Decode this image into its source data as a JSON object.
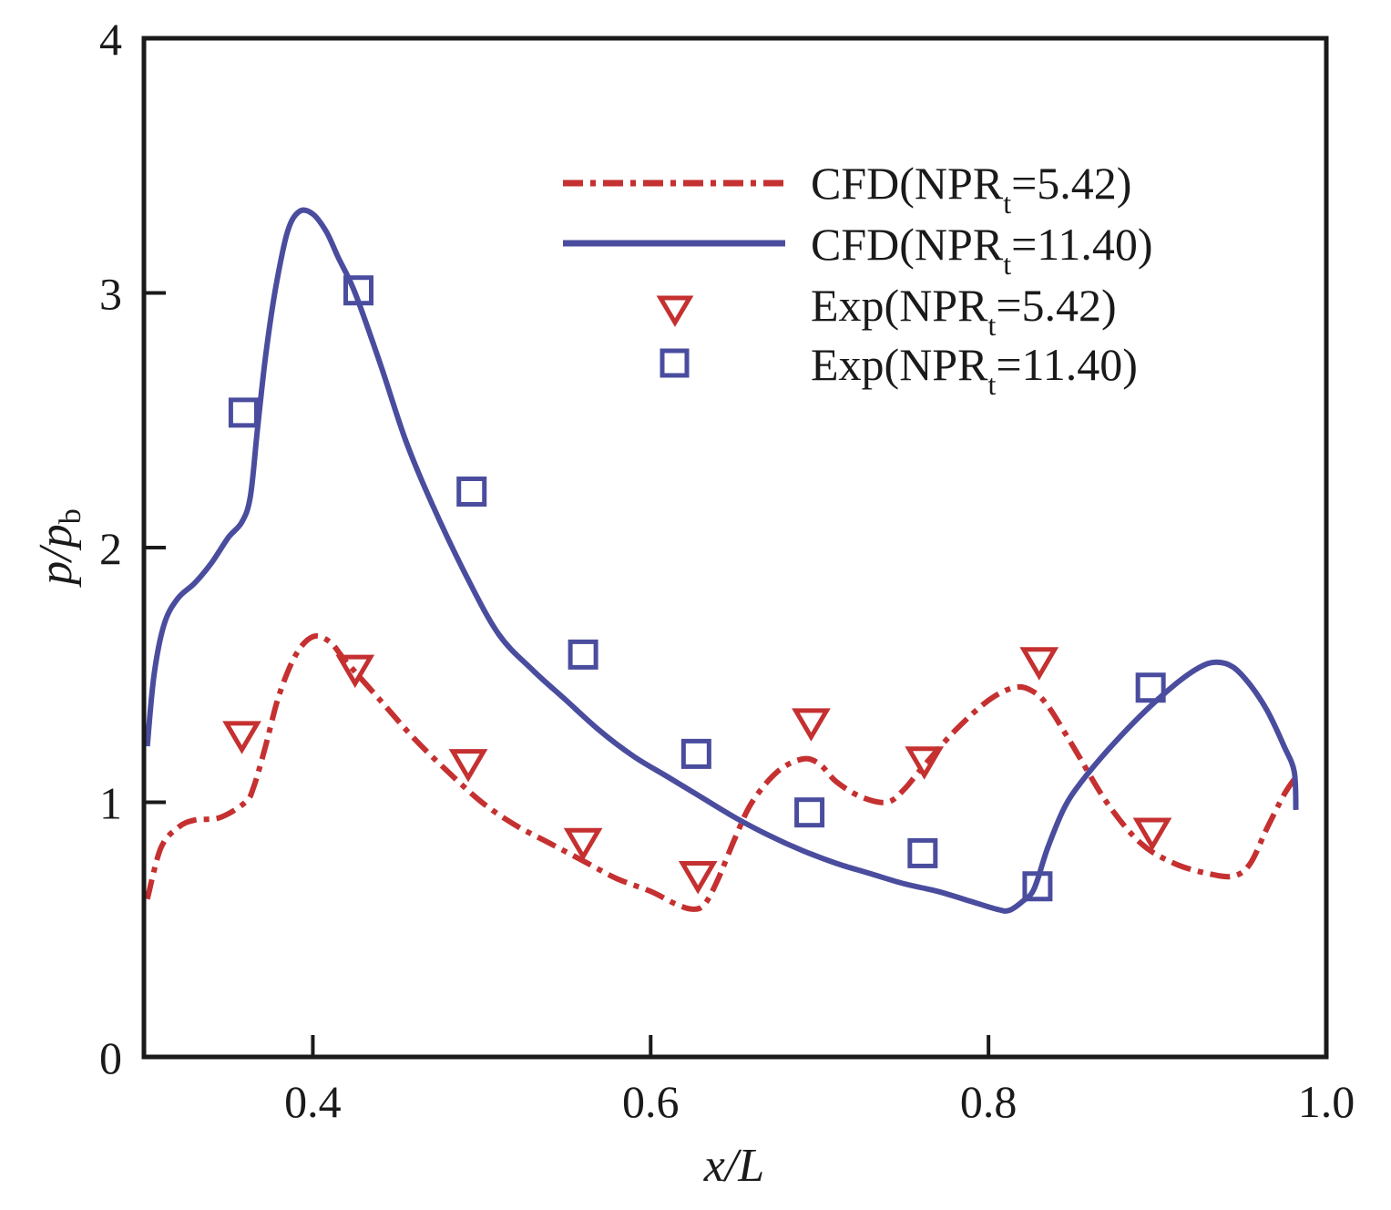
{
  "chart_data": {
    "type": "line",
    "title": "",
    "xlabel": "x/L",
    "ylabel_main": "p/p",
    "ylabel_sub": "b",
    "xlim": [
      0.3,
      1.0
    ],
    "ylim": [
      0,
      4
    ],
    "xticks": [
      0.4,
      0.6,
      0.8,
      1.0
    ],
    "xtick_labels": [
      "0.4",
      "0.6",
      "0.8",
      "1.0"
    ],
    "yticks": [
      0,
      1,
      2,
      3,
      4
    ],
    "ytick_labels": [
      "0",
      "1",
      "2",
      "3",
      "4"
    ],
    "grid": false,
    "legend_position": "top-right",
    "series": [
      {
        "name": "CFD(NPRt=5.42)",
        "label_main": "CFD(NPR",
        "label_sub": "t",
        "label_tail": "=5.42)",
        "kind": "line",
        "style": "dash-dot",
        "color": "#c53030",
        "x": [
          0.302,
          0.31,
          0.32,
          0.33,
          0.345,
          0.36,
          0.365,
          0.372,
          0.38,
          0.39,
          0.4,
          0.41,
          0.42,
          0.44,
          0.46,
          0.48,
          0.5,
          0.52,
          0.54,
          0.56,
          0.58,
          0.6,
          0.615,
          0.625,
          0.632,
          0.64,
          0.65,
          0.66,
          0.675,
          0.69,
          0.7,
          0.71,
          0.725,
          0.74,
          0.75,
          0.76,
          0.78,
          0.8,
          0.815,
          0.825,
          0.835,
          0.85,
          0.87,
          0.89,
          0.91,
          0.93,
          0.945,
          0.955,
          0.965,
          0.975,
          0.981
        ],
        "y": [
          0.62,
          0.82,
          0.9,
          0.93,
          0.94,
          1.0,
          1.06,
          1.22,
          1.42,
          1.58,
          1.65,
          1.63,
          1.55,
          1.4,
          1.25,
          1.12,
          1.0,
          0.91,
          0.84,
          0.77,
          0.7,
          0.65,
          0.6,
          0.58,
          0.6,
          0.7,
          0.86,
          1.0,
          1.12,
          1.17,
          1.15,
          1.08,
          1.02,
          1.0,
          1.05,
          1.13,
          1.28,
          1.4,
          1.45,
          1.44,
          1.38,
          1.22,
          1.0,
          0.84,
          0.76,
          0.72,
          0.71,
          0.76,
          0.9,
          1.03,
          1.09
        ]
      },
      {
        "name": "CFD(NPRt=11.40)",
        "label_main": "CFD(NPR",
        "label_sub": "t",
        "label_tail": "=11.40)",
        "kind": "line",
        "style": "solid",
        "color": "#4a4d9e",
        "x": [
          0.302,
          0.306,
          0.312,
          0.32,
          0.33,
          0.34,
          0.35,
          0.358,
          0.363,
          0.367,
          0.372,
          0.378,
          0.385,
          0.392,
          0.4,
          0.408,
          0.415,
          0.425,
          0.44,
          0.455,
          0.47,
          0.49,
          0.51,
          0.53,
          0.55,
          0.57,
          0.59,
          0.61,
          0.63,
          0.65,
          0.67,
          0.69,
          0.71,
          0.73,
          0.75,
          0.77,
          0.79,
          0.805,
          0.812,
          0.82,
          0.827,
          0.835,
          0.845,
          0.855,
          0.87,
          0.89,
          0.91,
          0.925,
          0.935,
          0.945,
          0.955,
          0.965,
          0.975,
          0.981,
          0.982
        ],
        "y": [
          1.22,
          1.5,
          1.7,
          1.8,
          1.86,
          1.94,
          2.04,
          2.1,
          2.2,
          2.45,
          2.75,
          3.02,
          3.24,
          3.32,
          3.31,
          3.24,
          3.14,
          3.0,
          2.72,
          2.42,
          2.18,
          1.9,
          1.66,
          1.52,
          1.4,
          1.28,
          1.18,
          1.1,
          1.02,
          0.94,
          0.87,
          0.81,
          0.76,
          0.72,
          0.68,
          0.65,
          0.61,
          0.58,
          0.575,
          0.61,
          0.66,
          0.82,
          0.98,
          1.08,
          1.2,
          1.34,
          1.46,
          1.53,
          1.55,
          1.53,
          1.46,
          1.36,
          1.22,
          1.12,
          0.97
        ]
      },
      {
        "name": "Exp(NPRt=5.42)",
        "label_main": "Exp(NPR",
        "label_sub": "t",
        "label_tail": "=5.42)",
        "kind": "scatter",
        "marker": "triangle-down",
        "color": "#c53030",
        "x": [
          0.358,
          0.425,
          0.492,
          0.56,
          0.628,
          0.695,
          0.762,
          0.83,
          0.897
        ],
        "y": [
          1.26,
          1.52,
          1.15,
          0.84,
          0.71,
          1.31,
          1.16,
          1.55,
          0.88
        ]
      },
      {
        "name": "Exp(NPRt=11.40)",
        "label_main": "Exp(NPR",
        "label_sub": "t",
        "label_tail": "=11.40)",
        "kind": "scatter",
        "marker": "square",
        "color": "#4a4d9e",
        "x": [
          0.359,
          0.427,
          0.494,
          0.56,
          0.627,
          0.694,
          0.761,
          0.829,
          0.896
        ],
        "y": [
          2.53,
          3.01,
          2.22,
          1.58,
          1.19,
          0.96,
          0.8,
          0.67,
          1.45
        ]
      }
    ]
  }
}
